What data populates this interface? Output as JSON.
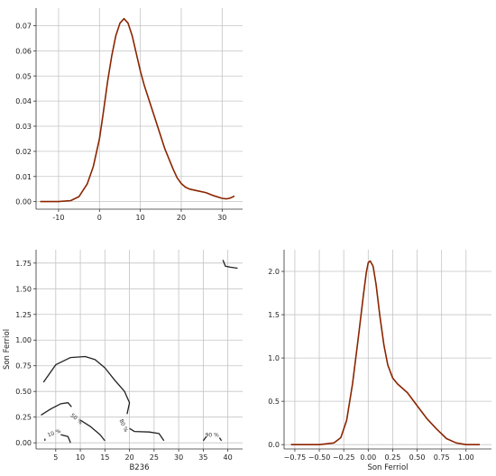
{
  "chart_data": [
    {
      "type": "line",
      "panel": "top-left",
      "title": "",
      "xlabel": "",
      "ylabel": "",
      "xlim": [
        -15.5,
        35
      ],
      "ylim": [
        -0.003,
        0.077
      ],
      "xticks": [
        -10,
        0,
        10,
        20,
        30
      ],
      "yticks": [
        0.0,
        0.01,
        0.02,
        0.03,
        0.04,
        0.05,
        0.06,
        0.07
      ],
      "ytick_labels": [
        "0.00",
        "0.01",
        "0.02",
        "0.03",
        "0.04",
        "0.05",
        "0.06",
        "0.07"
      ],
      "grid": true,
      "line_color": "#8b2500",
      "x": [
        -14.5,
        -10,
        -7,
        -5,
        -3,
        -1.5,
        0,
        1,
        2,
        3,
        4,
        5,
        6,
        7,
        8,
        9,
        10,
        11,
        12,
        14,
        16,
        18,
        19,
        20,
        21,
        22,
        24,
        26,
        28,
        30,
        31,
        32,
        33
      ],
      "y": [
        0.0,
        0.0,
        0.0004,
        0.002,
        0.007,
        0.014,
        0.025,
        0.036,
        0.048,
        0.058,
        0.066,
        0.071,
        0.0728,
        0.071,
        0.066,
        0.059,
        0.052,
        0.046,
        0.041,
        0.031,
        0.021,
        0.013,
        0.0095,
        0.0072,
        0.0058,
        0.005,
        0.0043,
        0.0036,
        0.0023,
        0.0013,
        0.0011,
        0.0014,
        0.0022
      ]
    },
    {
      "type": "contour",
      "panel": "bottom-left",
      "title": "",
      "xlabel": "B236",
      "ylabel": "Son Ferriol",
      "xlim": [
        1,
        43
      ],
      "ylim": [
        -0.06,
        1.88
      ],
      "xticks": [
        5,
        10,
        15,
        20,
        25,
        30,
        35,
        40
      ],
      "yticks": [
        0.0,
        0.25,
        0.5,
        0.75,
        1.0,
        1.25,
        1.5,
        1.75
      ],
      "ytick_labels": [
        "0.00",
        "0.25",
        "0.50",
        "0.75",
        "1.00",
        "1.25",
        "1.50",
        "1.75"
      ],
      "grid": true,
      "line_color": "#222222",
      "contours": [
        {
          "x": [
            2.5,
            5,
            8,
            11,
            13,
            15,
            17,
            19,
            20,
            19.5
          ],
          "y": [
            0.59,
            0.76,
            0.83,
            0.84,
            0.81,
            0.73,
            0.61,
            0.5,
            0.39,
            0.28
          ]
        },
        {
          "x": [
            2,
            4,
            6,
            7.5,
            8.2
          ],
          "y": [
            0.27,
            0.33,
            0.38,
            0.39,
            0.35
          ]
        },
        {
          "x": [
            10,
            12,
            14,
            15
          ],
          "y": [
            0.22,
            0.16,
            0.08,
            0.02
          ]
        },
        {
          "x": [
            2.8,
            2.8
          ],
          "y": [
            0.02,
            0.04
          ]
        },
        {
          "x": [
            6,
            7.5,
            8
          ],
          "y": [
            0.08,
            0.06,
            0.0
          ]
        },
        {
          "x": [
            20,
            21,
            24,
            26,
            27
          ],
          "y": [
            0.14,
            0.11,
            0.105,
            0.09,
            0.02
          ]
        },
        {
          "x": [
            35,
            35.6
          ],
          "y": [
            0.02,
            0.06
          ]
        },
        {
          "x": [
            38.3,
            38.7
          ],
          "y": [
            0.05,
            0.02
          ]
        },
        {
          "x": [
            39,
            39.5,
            40.5,
            42
          ],
          "y": [
            1.78,
            1.72,
            1.71,
            1.7
          ]
        }
      ],
      "labels": [
        {
          "text": "10 %",
          "x": 4.8,
          "y": 0.08,
          "rotate": -20
        },
        {
          "text": "50 %",
          "x": 9,
          "y": 0.22,
          "rotate": 40
        },
        {
          "text": "80 %",
          "x": 18.5,
          "y": 0.16,
          "rotate": 65
        },
        {
          "text": "90 %",
          "x": 36.8,
          "y": 0.06,
          "rotate": 0
        }
      ]
    },
    {
      "type": "line",
      "panel": "bottom-right",
      "title": "",
      "xlabel": "Son Ferriol",
      "ylabel": "",
      "xlim": [
        -0.86,
        1.26
      ],
      "ylim": [
        -0.05,
        2.25
      ],
      "xticks": [
        -0.75,
        -0.5,
        -0.25,
        0.0,
        0.25,
        0.5,
        0.75,
        1.0
      ],
      "xtick_labels": [
        "−0.75",
        "−0.50",
        "−0.25",
        "0.00",
        "0.25",
        "0.50",
        "0.75",
        "1.00"
      ],
      "yticks": [
        0.0,
        0.5,
        1.0,
        1.5,
        2.0
      ],
      "ytick_labels": [
        "0.0",
        "0.5",
        "1.0",
        "1.5",
        "2.0"
      ],
      "grid": true,
      "line_color": "#8b2500",
      "x": [
        -0.79,
        -0.5,
        -0.35,
        -0.28,
        -0.22,
        -0.16,
        -0.1,
        -0.05,
        -0.02,
        0.0,
        0.02,
        0.05,
        0.08,
        0.12,
        0.16,
        0.2,
        0.25,
        0.3,
        0.4,
        0.5,
        0.6,
        0.7,
        0.8,
        0.9,
        1.0,
        1.14
      ],
      "y": [
        0.0,
        0.0,
        0.02,
        0.08,
        0.28,
        0.7,
        1.25,
        1.72,
        1.98,
        2.1,
        2.12,
        2.06,
        1.85,
        1.48,
        1.15,
        0.92,
        0.77,
        0.7,
        0.6,
        0.45,
        0.3,
        0.18,
        0.07,
        0.02,
        0.0,
        0.0
      ]
    }
  ]
}
